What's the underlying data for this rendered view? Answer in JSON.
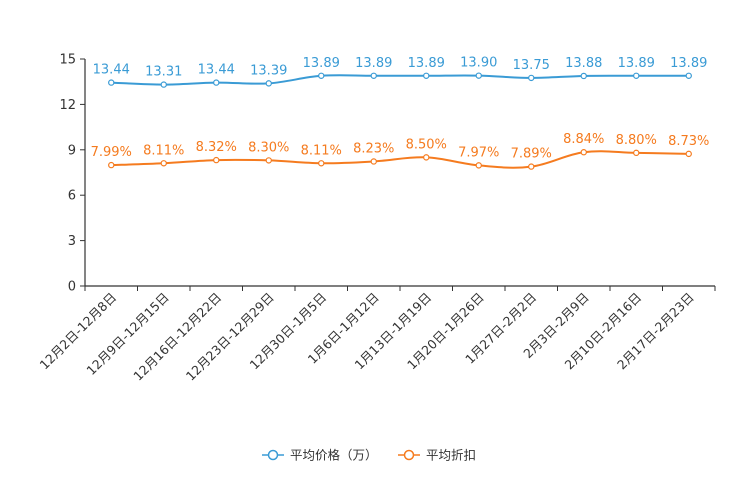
{
  "chart_data": {
    "type": "line",
    "title": "",
    "xlabel": "",
    "ylabel": "",
    "ylim": [
      0,
      15
    ],
    "yticks": [
      0,
      3,
      6,
      9,
      12,
      15
    ],
    "grid": false,
    "legend_position": "bottom-center",
    "categories": [
      "12月2日-12月8日",
      "12月9日-12月15日",
      "12月16日-12月22日",
      "12月23日-12月29日",
      "12月30日-1月5日",
      "1月6日-1月12日",
      "1月13日-1月19日",
      "1月20日-1月26日",
      "1月27日-2月2日",
      "2月3日-2月9日",
      "2月10日-2月16日",
      "2月17日-2月23日"
    ],
    "series": [
      {
        "name": "平均价格（万）",
        "color": "#3a9bd5",
        "values": [
          13.44,
          13.31,
          13.44,
          13.39,
          13.89,
          13.89,
          13.89,
          13.9,
          13.75,
          13.88,
          13.89,
          13.89
        ],
        "labels": [
          "13.44",
          "13.31",
          "13.44",
          "13.39",
          "13.89",
          "13.89",
          "13.89",
          "13.90",
          "13.75",
          "13.88",
          "13.89",
          "13.89"
        ]
      },
      {
        "name": "平均折扣",
        "color": "#f57b1f",
        "values": [
          7.99,
          8.11,
          8.32,
          8.3,
          8.11,
          8.23,
          8.5,
          7.97,
          7.89,
          8.84,
          8.8,
          8.73
        ],
        "labels": [
          "7.99%",
          "8.11%",
          "8.32%",
          "8.30%",
          "8.11%",
          "8.23%",
          "8.50%",
          "7.97%",
          "7.89%",
          "8.84%",
          "8.80%",
          "8.73%"
        ]
      }
    ]
  }
}
